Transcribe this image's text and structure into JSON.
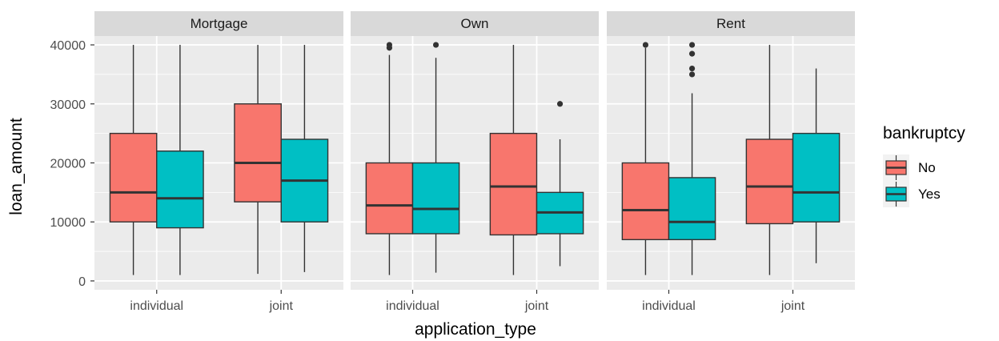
{
  "chart_data": {
    "type": "boxplot",
    "xlabel": "application_type",
    "ylabel": "loan_amount",
    "ylim": [
      -1500,
      41500
    ],
    "yticks": [
      0,
      10000,
      20000,
      30000,
      40000
    ],
    "ytick_labels": [
      "0",
      "10000",
      "20000",
      "30000",
      "40000"
    ],
    "categories": [
      "individual",
      "joint"
    ],
    "grid": true,
    "legend": {
      "title": "bankruptcy",
      "placement": "right",
      "entries": [
        {
          "name": "No",
          "color": "#F8766D"
        },
        {
          "name": "Yes",
          "color": "#00BFC4"
        }
      ]
    },
    "facets": [
      {
        "label": "Mortgage",
        "boxes": [
          {
            "category": "individual",
            "group": "No",
            "whisker_low": 1000,
            "q1": 10000,
            "median": 15000,
            "q3": 25000,
            "whisker_high": 40000,
            "outliers": []
          },
          {
            "category": "individual",
            "group": "Yes",
            "whisker_low": 1000,
            "q1": 9000,
            "median": 14000,
            "q3": 22000,
            "whisker_high": 40000,
            "outliers": []
          },
          {
            "category": "joint",
            "group": "No",
            "whisker_low": 1200,
            "q1": 13400,
            "median": 20000,
            "q3": 30000,
            "whisker_high": 40000,
            "outliers": []
          },
          {
            "category": "joint",
            "group": "Yes",
            "whisker_low": 1500,
            "q1": 10000,
            "median": 17000,
            "q3": 24000,
            "whisker_high": 40000,
            "outliers": []
          }
        ]
      },
      {
        "label": "Own",
        "boxes": [
          {
            "category": "individual",
            "group": "No",
            "whisker_low": 1000,
            "q1": 8000,
            "median": 12800,
            "q3": 20000,
            "whisker_high": 38300,
            "outliers": [
              39500,
              40000
            ]
          },
          {
            "category": "individual",
            "group": "Yes",
            "whisker_low": 1400,
            "q1": 8000,
            "median": 12200,
            "q3": 20000,
            "whisker_high": 37800,
            "outliers": [
              40000
            ]
          },
          {
            "category": "joint",
            "group": "No",
            "whisker_low": 1000,
            "q1": 7800,
            "median": 16000,
            "q3": 25000,
            "whisker_high": 40000,
            "outliers": []
          },
          {
            "category": "joint",
            "group": "Yes",
            "whisker_low": 2500,
            "q1": 8000,
            "median": 11600,
            "q3": 15000,
            "whisker_high": 24000,
            "outliers": [
              30000
            ]
          }
        ]
      },
      {
        "label": "Rent",
        "boxes": [
          {
            "category": "individual",
            "group": "No",
            "whisker_low": 1000,
            "q1": 7000,
            "median": 12000,
            "q3": 20000,
            "whisker_high": 39500,
            "outliers": [
              40000
            ]
          },
          {
            "category": "individual",
            "group": "Yes",
            "whisker_low": 1000,
            "q1": 7000,
            "median": 10000,
            "q3": 17500,
            "whisker_high": 31800,
            "outliers": [
              35000,
              36000,
              38500,
              40000
            ]
          },
          {
            "category": "joint",
            "group": "No",
            "whisker_low": 1000,
            "q1": 9700,
            "median": 16000,
            "q3": 24000,
            "whisker_high": 40000,
            "outliers": []
          },
          {
            "category": "joint",
            "group": "Yes",
            "whisker_low": 3000,
            "q1": 10000,
            "median": 15000,
            "q3": 25000,
            "whisker_high": 36000,
            "outliers": []
          }
        ]
      }
    ]
  },
  "colors": {
    "panel_bg": "#EBEBEB",
    "strip_bg": "#D9D9D9",
    "grid_major": "#FFFFFF",
    "box_stroke": "#333333"
  }
}
